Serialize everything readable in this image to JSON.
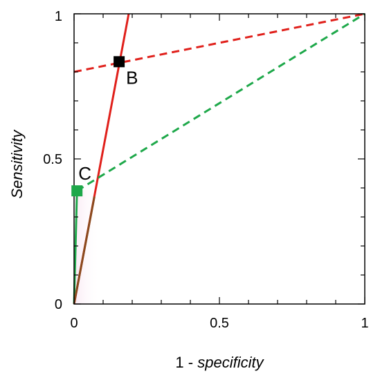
{
  "chart_data": {
    "type": "line",
    "xlabel_prefix": "1 - ",
    "xlabel_italic": "specificity",
    "ylabel": "Sensitivity",
    "xlim": [
      0,
      1
    ],
    "ylim": [
      0,
      1
    ],
    "x_ticks": [
      "0",
      "0.5",
      "1"
    ],
    "y_ticks": [
      "0",
      "0.5",
      "1"
    ],
    "grid": false,
    "series": [
      {
        "style": "solid",
        "color": "#e0201b",
        "x": [
          0,
          0.188
        ],
        "y": [
          0,
          1
        ]
      },
      {
        "style": "dashed",
        "color": "#e0201b",
        "x": [
          0,
          1
        ],
        "y": [
          0.8,
          1
        ]
      },
      {
        "style": "dashed",
        "color": "#1ea84a",
        "x": [
          0.01,
          1
        ],
        "y": [
          0.39,
          1
        ]
      },
      {
        "style": "solid",
        "color": "#1ea84a",
        "x": [
          0,
          0.01
        ],
        "y": [
          0,
          0.39
        ]
      }
    ],
    "points": [
      {
        "label": "B",
        "x": 0.155,
        "y": 0.835,
        "color": "#000000"
      },
      {
        "label": "C",
        "x": 0.01,
        "y": 0.39,
        "color": "#1ea84a"
      }
    ]
  }
}
